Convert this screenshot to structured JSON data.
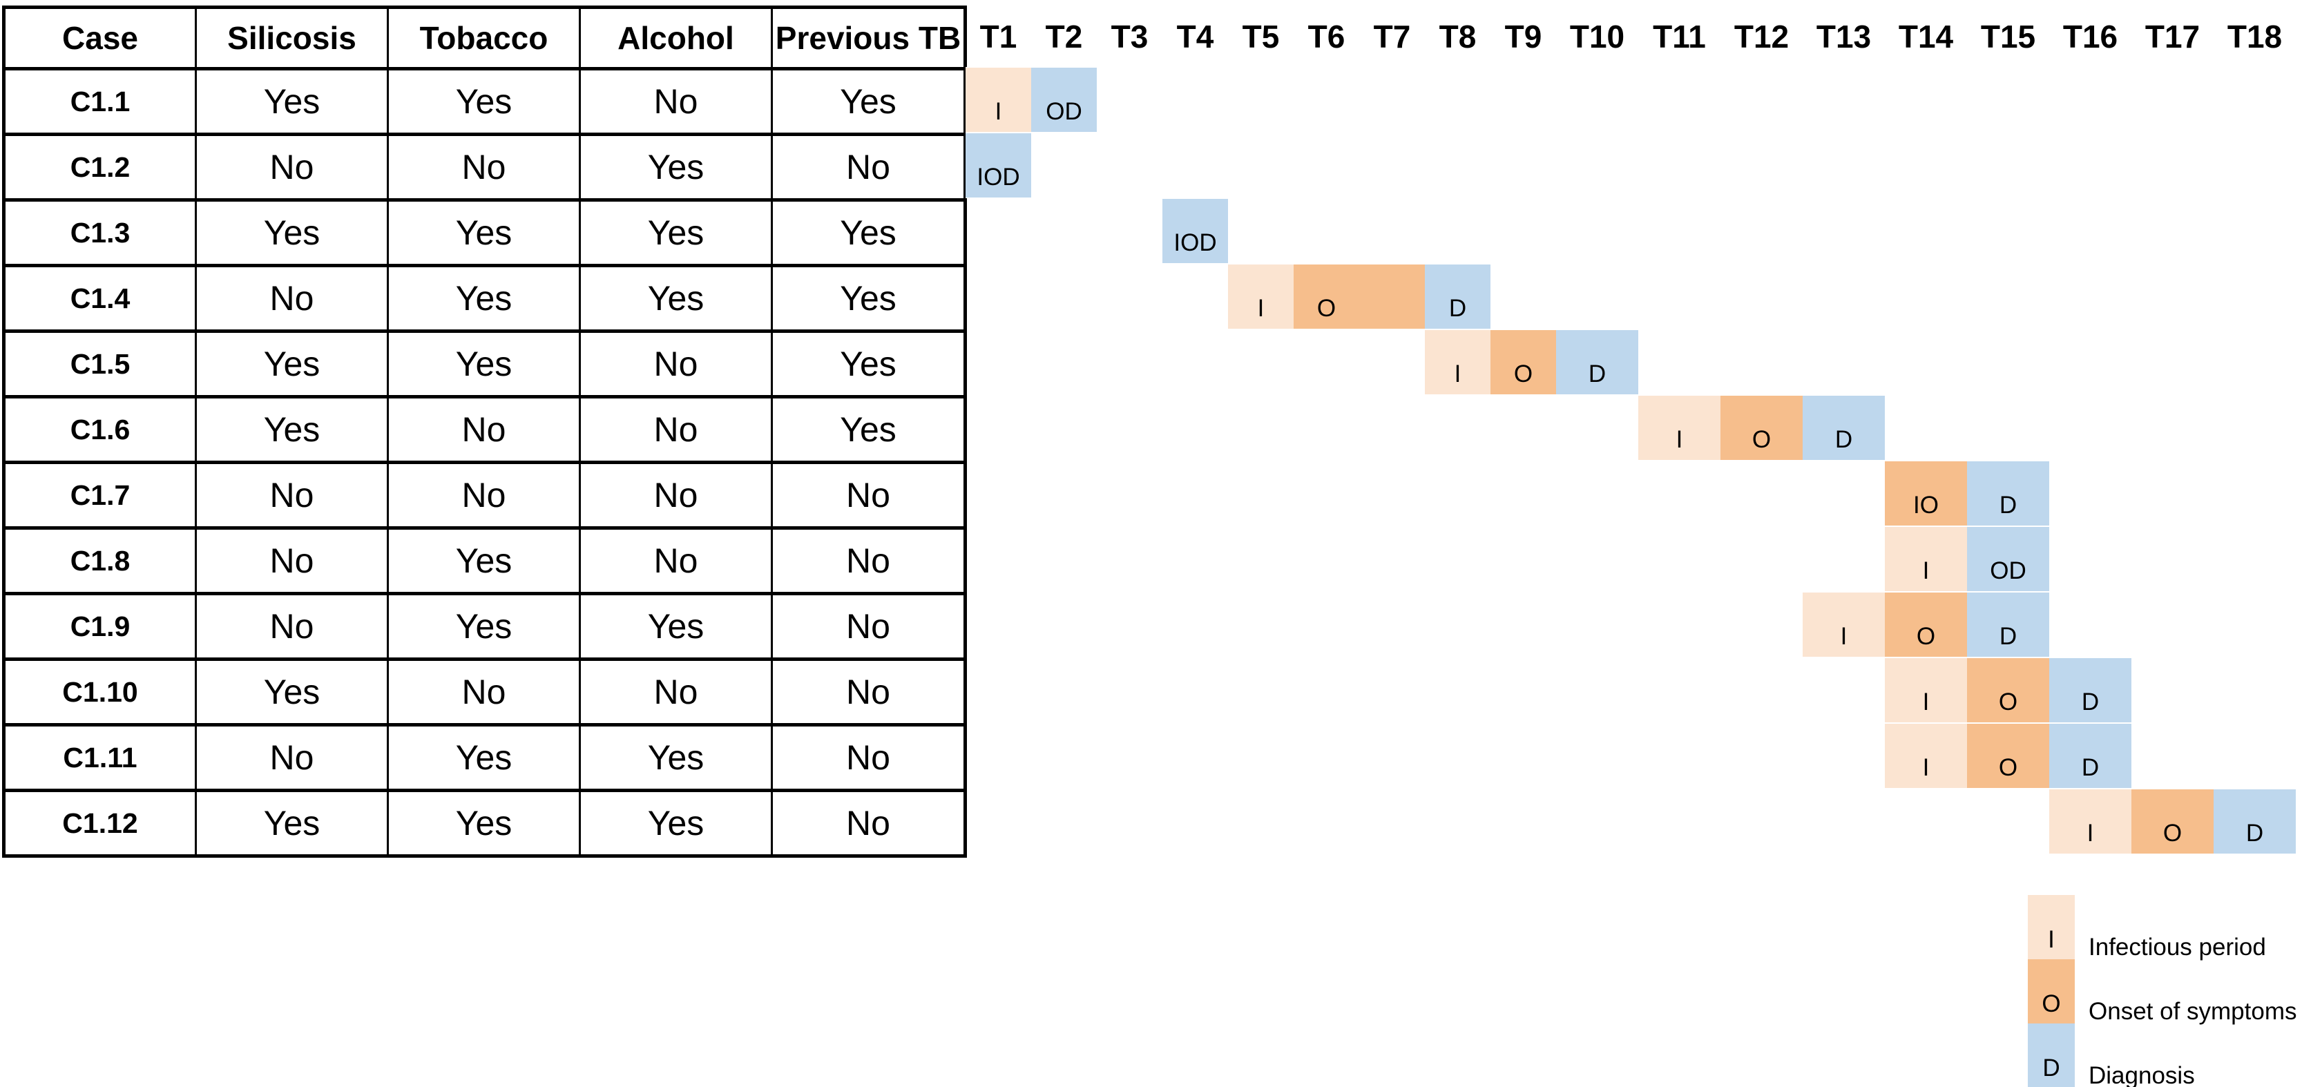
{
  "colors": {
    "infectious": "#FBE4D1",
    "onset": "#F6BE8C",
    "diagnosis": "#BED7ED",
    "border": "#000000",
    "background": "#FFFFFF"
  },
  "legend": {
    "items": [
      {
        "letter": "I",
        "label": "Infectious period",
        "event": "infectious"
      },
      {
        "letter": "O",
        "label": "Onset of symptoms",
        "event": "onset"
      },
      {
        "letter": "D",
        "label": "Diagnosis",
        "event": "diagnosis"
      }
    ]
  },
  "chart_data": [
    {
      "type": "table",
      "columns": [
        "Case",
        "Silicosis",
        "Tobacco",
        "Alcohol",
        "Previous TB"
      ],
      "rows": [
        [
          "C1.1",
          "Yes",
          "Yes",
          "No",
          "Yes"
        ],
        [
          "C1.2",
          "No",
          "No",
          "Yes",
          "No"
        ],
        [
          "C1.3",
          "Yes",
          "Yes",
          "Yes",
          "Yes"
        ],
        [
          "C1.4",
          "No",
          "Yes",
          "Yes",
          "Yes"
        ],
        [
          "C1.5",
          "Yes",
          "Yes",
          "No",
          "Yes"
        ],
        [
          "C1.6",
          "Yes",
          "No",
          "No",
          "Yes"
        ],
        [
          "C1.7",
          "No",
          "No",
          "No",
          "No"
        ],
        [
          "C1.8",
          "No",
          "Yes",
          "No",
          "No"
        ],
        [
          "C1.9",
          "No",
          "Yes",
          "Yes",
          "No"
        ],
        [
          "C1.10",
          "Yes",
          "No",
          "No",
          "No"
        ],
        [
          "C1.11",
          "No",
          "Yes",
          "Yes",
          "No"
        ],
        [
          "C1.12",
          "Yes",
          "Yes",
          "Yes",
          "No"
        ]
      ]
    },
    {
      "type": "heatmap",
      "x_categories": [
        "T1",
        "T2",
        "T3",
        "T4",
        "T5",
        "T6",
        "T7",
        "T8",
        "T9",
        "T10",
        "T11",
        "T12",
        "T13",
        "T14",
        "T15",
        "T16",
        "T17",
        "T18"
      ],
      "y_categories": [
        "C1.1",
        "C1.2",
        "C1.3",
        "C1.4",
        "C1.5",
        "C1.6",
        "C1.7",
        "C1.8",
        "C1.9",
        "C1.10",
        "C1.11",
        "C1.12"
      ],
      "legend_position": "bottom-right",
      "grid": false,
      "cells": [
        {
          "case": "C1.1",
          "time": "T1",
          "label": "I",
          "event": "infectious"
        },
        {
          "case": "C1.1",
          "time": "T2",
          "label": "OD",
          "event": "diagnosis"
        },
        {
          "case": "C1.2",
          "time": "T1",
          "label": "IOD",
          "event": "diagnosis"
        },
        {
          "case": "C1.3",
          "time": "T4",
          "label": "IOD",
          "event": "diagnosis"
        },
        {
          "case": "C1.4",
          "time": "T5",
          "label": "I",
          "event": "infectious"
        },
        {
          "case": "C1.4",
          "time": "T6",
          "label": "O",
          "event": "onset"
        },
        {
          "case": "C1.4",
          "time": "T7",
          "label": "",
          "event": "onset"
        },
        {
          "case": "C1.4",
          "time": "T8",
          "label": "D",
          "event": "diagnosis"
        },
        {
          "case": "C1.5",
          "time": "T8",
          "label": "I",
          "event": "infectious"
        },
        {
          "case": "C1.5",
          "time": "T9",
          "label": "O",
          "event": "onset"
        },
        {
          "case": "C1.5",
          "time": "T10",
          "label": "D",
          "event": "diagnosis"
        },
        {
          "case": "C1.6",
          "time": "T11",
          "label": "I",
          "event": "infectious"
        },
        {
          "case": "C1.6",
          "time": "T12",
          "label": "O",
          "event": "onset"
        },
        {
          "case": "C1.6",
          "time": "T13",
          "label": "D",
          "event": "diagnosis"
        },
        {
          "case": "C1.7",
          "time": "T14",
          "label": "IO",
          "event": "onset"
        },
        {
          "case": "C1.7",
          "time": "T15",
          "label": "D",
          "event": "diagnosis"
        },
        {
          "case": "C1.8",
          "time": "T14",
          "label": "I",
          "event": "infectious"
        },
        {
          "case": "C1.8",
          "time": "T15",
          "label": "OD",
          "event": "diagnosis"
        },
        {
          "case": "C1.9",
          "time": "T13",
          "label": "I",
          "event": "infectious"
        },
        {
          "case": "C1.9",
          "time": "T14",
          "label": "O",
          "event": "onset"
        },
        {
          "case": "C1.9",
          "time": "T15",
          "label": "D",
          "event": "diagnosis"
        },
        {
          "case": "C1.10",
          "time": "T14",
          "label": "I",
          "event": "infectious"
        },
        {
          "case": "C1.10",
          "time": "T15",
          "label": "O",
          "event": "onset"
        },
        {
          "case": "C1.10",
          "time": "T16",
          "label": "D",
          "event": "diagnosis"
        },
        {
          "case": "C1.11",
          "time": "T14",
          "label": "I",
          "event": "infectious"
        },
        {
          "case": "C1.11",
          "time": "T15",
          "label": "O",
          "event": "onset"
        },
        {
          "case": "C1.11",
          "time": "T16",
          "label": "D",
          "event": "diagnosis"
        },
        {
          "case": "C1.12",
          "time": "T16",
          "label": "I",
          "event": "infectious"
        },
        {
          "case": "C1.12",
          "time": "T17",
          "label": "O",
          "event": "onset"
        },
        {
          "case": "C1.12",
          "time": "T18",
          "label": "D",
          "event": "diagnosis"
        }
      ]
    }
  ]
}
